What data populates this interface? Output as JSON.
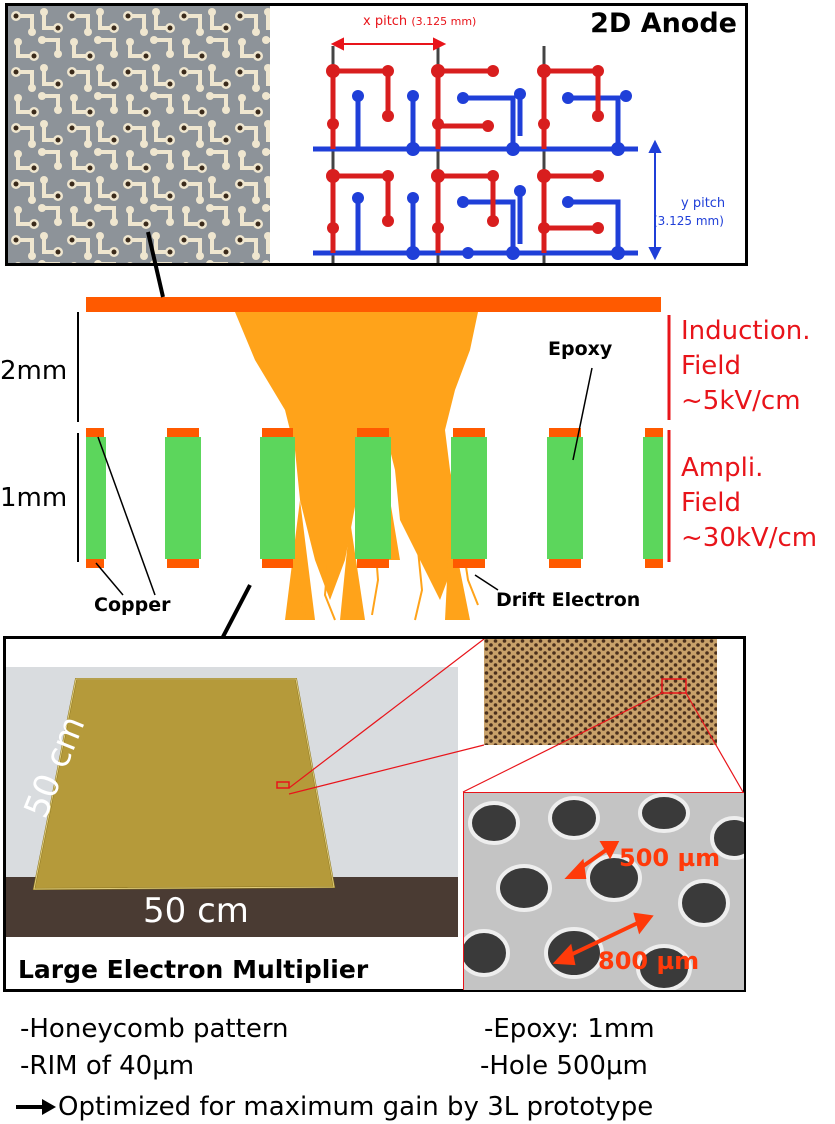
{
  "anode": {
    "title": "2D Anode",
    "x_pitch_label": "x pitch",
    "x_pitch_value": "(3.125 mm)",
    "y_pitch_label": "y pitch",
    "y_pitch_value": "(3.125 mm)"
  },
  "cross_section": {
    "gap_2mm": "2mm",
    "gap_1mm": "1mm",
    "epoxy": "Epoxy",
    "copper": "Copper",
    "drift_electron": "Drift Electron",
    "induction_line1": "Induction.",
    "induction_line2": "Field",
    "induction_line3": "~5kV/cm",
    "ampli_line1": "Ampli.",
    "ampli_line2": "Field",
    "ampli_line3": "~30kV/cm"
  },
  "lem": {
    "title": "Large Electron Multiplier",
    "size_vertical": "50 cm",
    "size_horizontal": "50 cm",
    "hole_diameter": "500 µm",
    "hole_pitch": "800 µm"
  },
  "notes": {
    "left1": "-Honeycomb pattern",
    "left2": "-RIM of 40µm",
    "right1": "-Epoxy: 1mm",
    "right2": "-Hole 500µm",
    "bottom": "Optimized for maximum gain by 3L prototype"
  },
  "colors": {
    "copper": "#ff5a00",
    "epoxy": "#5cd65c",
    "electron": "#ffa31a",
    "red_label": "#e8141a",
    "anode_red": "#d81e1e",
    "anode_blue": "#1f3fd8"
  }
}
